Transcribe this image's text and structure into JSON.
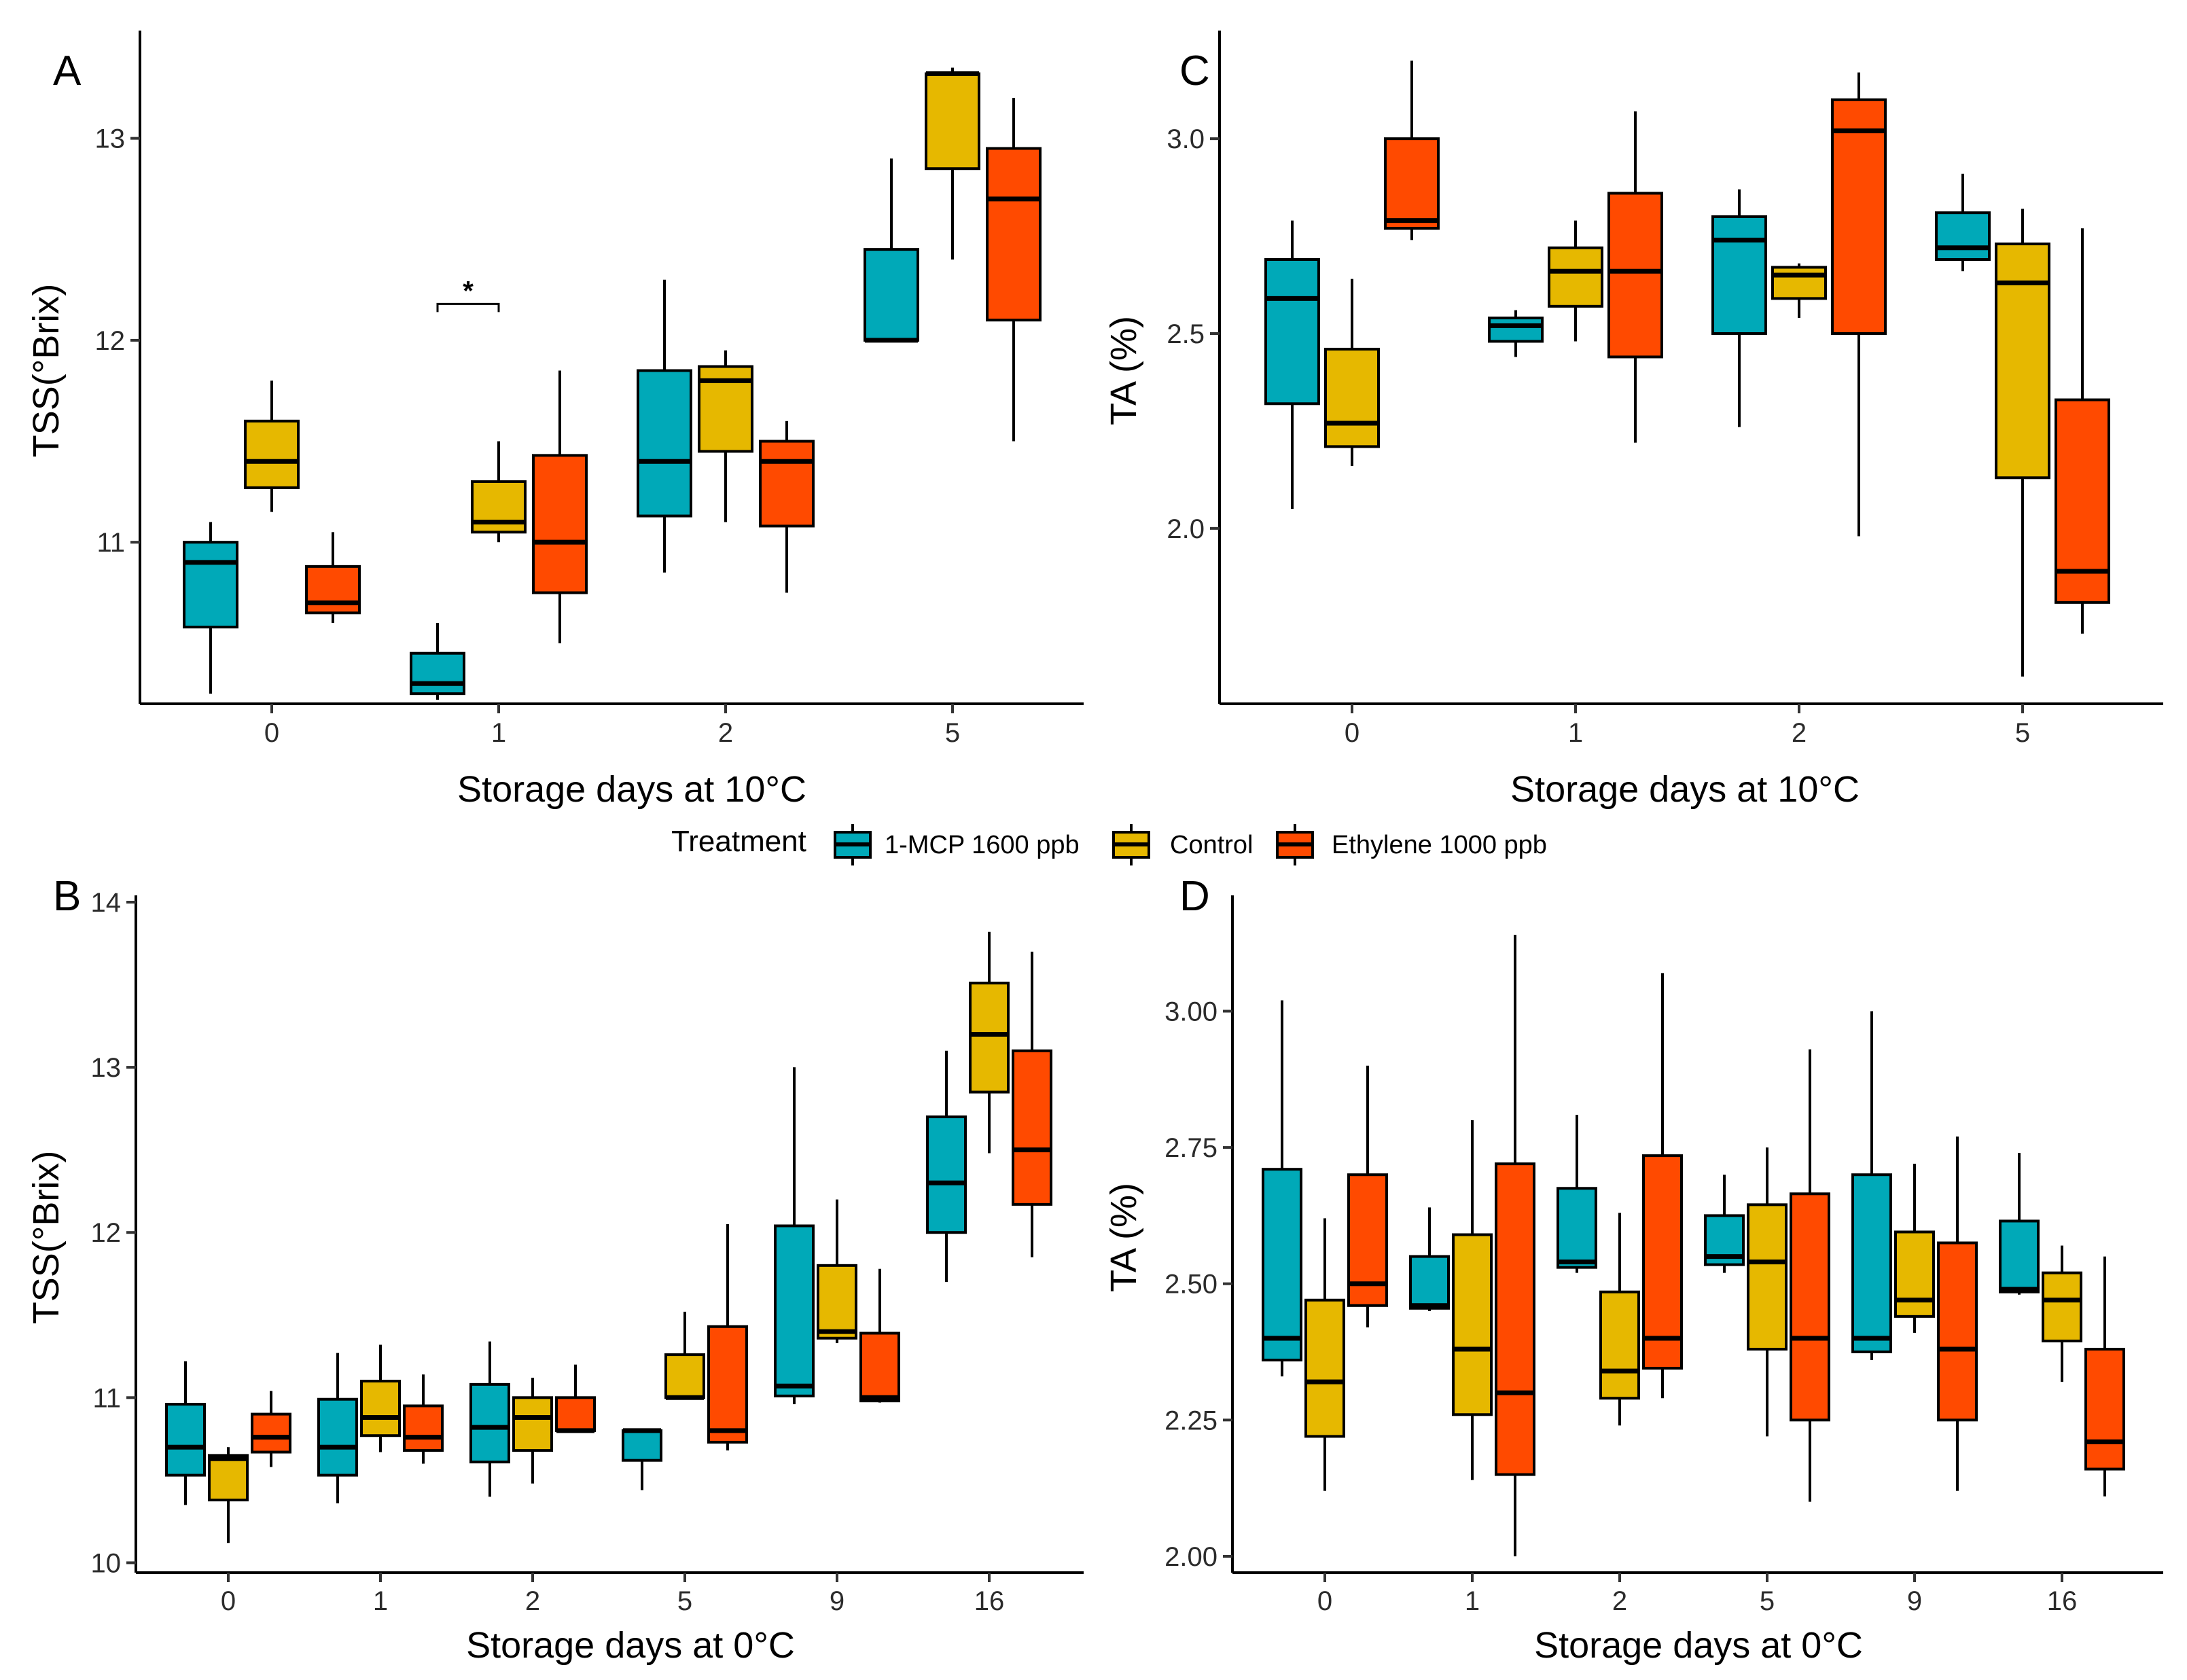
{
  "colors": {
    "1-MCP 1600 ppb": "#00A9B8",
    "Control": "#E6B800",
    "Ethylene 1000 ppb": "#FF4A00"
  },
  "legend": {
    "title": "Treatment",
    "items": [
      "1-MCP 1600 ppb",
      "Control",
      "Ethylene 1000 ppb"
    ]
  },
  "chart_data": [
    {
      "panel": "A",
      "type": "boxplot",
      "xlabel": "Storage days at 10°C",
      "ylabel": "TSS(°Brix)",
      "ylim": [
        10.2,
        13.5
      ],
      "yticks": [
        11,
        12,
        13
      ],
      "ytick_labels": [
        "11",
        "12",
        "13"
      ],
      "categories": [
        "0",
        "1",
        "2",
        "5"
      ],
      "series": [
        {
          "name": "1-MCP 1600 ppb",
          "boxes": [
            {
              "min": 10.25,
              "q1": 10.58,
              "median": 10.9,
              "q3": 11.0,
              "max": 11.1
            },
            {
              "min": 10.22,
              "q1": 10.25,
              "median": 10.3,
              "q3": 10.45,
              "max": 10.6
            },
            {
              "min": 10.85,
              "q1": 11.13,
              "median": 11.4,
              "q3": 11.85,
              "max": 12.3
            },
            {
              "min": 12.0,
              "q1": 12.0,
              "median": 12.0,
              "q3": 12.45,
              "max": 12.9
            }
          ]
        },
        {
          "name": "Control",
          "boxes": [
            {
              "min": 11.15,
              "q1": 11.27,
              "median": 11.4,
              "q3": 11.6,
              "max": 11.8
            },
            {
              "min": 11.0,
              "q1": 11.05,
              "median": 11.1,
              "q3": 11.3,
              "max": 11.5
            },
            {
              "min": 11.1,
              "q1": 11.45,
              "median": 11.8,
              "q3": 11.87,
              "max": 11.95
            },
            {
              "min": 12.4,
              "q1": 12.85,
              "median": 13.32,
              "q3": 13.32,
              "max": 13.35
            }
          ]
        },
        {
          "name": "Ethylene 1000 ppb",
          "boxes": [
            {
              "min": 10.6,
              "q1": 10.65,
              "median": 10.7,
              "q3": 10.88,
              "max": 11.05
            },
            {
              "min": 10.5,
              "q1": 10.75,
              "median": 11.0,
              "q3": 11.43,
              "max": 11.85
            },
            {
              "min": 10.75,
              "q1": 11.08,
              "median": 11.4,
              "q3": 11.5,
              "max": 11.6
            },
            {
              "min": 11.5,
              "q1": 12.1,
              "median": 12.7,
              "q3": 12.95,
              "max": 13.2
            }
          ]
        }
      ],
      "annotations": [
        {
          "text": "*",
          "category": "1",
          "between": [
            "1-MCP 1600 ppb",
            "Control"
          ],
          "y": 12.18
        }
      ]
    },
    {
      "panel": "C",
      "type": "boxplot",
      "xlabel": "Storage days at 10°C",
      "ylabel": "TA (%)",
      "ylim": [
        1.55,
        3.26
      ],
      "yticks": [
        2.0,
        2.5,
        3.0
      ],
      "ytick_labels": [
        "2.0",
        "2.5",
        "3.0"
      ],
      "categories": [
        "0",
        "1",
        "2",
        "5"
      ],
      "series": [
        {
          "name": "1-MCP 1600 ppb",
          "boxes": [
            {
              "min": 2.05,
              "q1": 2.32,
              "median": 2.59,
              "q3": 2.69,
              "max": 2.79
            },
            {
              "min": 2.44,
              "q1": 2.48,
              "median": 2.52,
              "q3": 2.54,
              "max": 2.56
            },
            {
              "min": 2.26,
              "q1": 2.5,
              "median": 2.74,
              "q3": 2.8,
              "max": 2.87
            },
            {
              "min": 2.66,
              "q1": 2.69,
              "median": 2.72,
              "q3": 2.81,
              "max": 2.91
            }
          ]
        },
        {
          "name": "Control",
          "boxes": [
            {
              "min": 2.16,
              "q1": 2.21,
              "median": 2.27,
              "q3": 2.46,
              "max": 2.64
            },
            {
              "min": 2.48,
              "q1": 2.57,
              "median": 2.66,
              "q3": 2.72,
              "max": 2.79
            },
            {
              "min": 2.54,
              "q1": 2.59,
              "median": 2.65,
              "q3": 2.67,
              "max": 2.68
            },
            {
              "min": 1.62,
              "q1": 2.13,
              "median": 2.63,
              "q3": 2.73,
              "max": 2.82
            }
          ]
        },
        {
          "name": "Ethylene 1000 ppb",
          "boxes": [
            {
              "min": 2.74,
              "q1": 2.77,
              "median": 2.79,
              "q3": 3.0,
              "max": 3.2
            },
            {
              "min": 2.22,
              "q1": 2.44,
              "median": 2.66,
              "q3": 2.86,
              "max": 3.07
            },
            {
              "min": 1.98,
              "q1": 2.5,
              "median": 3.02,
              "q3": 3.1,
              "max": 3.17
            },
            {
              "min": 1.73,
              "q1": 1.81,
              "median": 1.89,
              "q3": 2.33,
              "max": 2.77
            }
          ]
        }
      ]
    },
    {
      "panel": "B",
      "type": "boxplot",
      "xlabel": "Storage days at 0°C",
      "ylabel": "TSS(°Brix)",
      "ylim": [
        9.94,
        14.0
      ],
      "yticks": [
        10,
        11,
        12,
        13,
        14
      ],
      "ytick_labels": [
        "10",
        "11",
        "12",
        "13",
        "14"
      ],
      "categories": [
        "0",
        "1",
        "2",
        "5",
        "9",
        "16"
      ],
      "series": [
        {
          "name": "1-MCP 1600 ppb",
          "boxes": [
            {
              "min": 10.35,
              "q1": 10.53,
              "median": 10.7,
              "q3": 10.96,
              "max": 11.22
            },
            {
              "min": 10.36,
              "q1": 10.53,
              "median": 10.7,
              "q3": 10.99,
              "max": 11.27
            },
            {
              "min": 10.4,
              "q1": 10.61,
              "median": 10.82,
              "q3": 11.08,
              "max": 11.34
            },
            {
              "min": 10.44,
              "q1": 10.62,
              "median": 10.8,
              "q3": 10.8,
              "max": 10.8
            },
            {
              "min": 10.96,
              "q1": 11.01,
              "median": 11.07,
              "q3": 12.04,
              "max": 13.0
            },
            {
              "min": 11.7,
              "q1": 12.0,
              "median": 12.3,
              "q3": 12.7,
              "max": 13.1
            }
          ]
        },
        {
          "name": "Control",
          "boxes": [
            {
              "min": 10.12,
              "q1": 10.38,
              "median": 10.63,
              "q3": 10.65,
              "max": 10.7
            },
            {
              "min": 10.67,
              "q1": 10.77,
              "median": 10.88,
              "q3": 11.1,
              "max": 11.32
            },
            {
              "min": 10.48,
              "q1": 10.68,
              "median": 10.88,
              "q3": 11.0,
              "max": 11.12
            },
            {
              "min": 11.0,
              "q1": 11.0,
              "median": 11.0,
              "q3": 11.26,
              "max": 11.52
            },
            {
              "min": 11.33,
              "q1": 11.36,
              "median": 11.4,
              "q3": 11.8,
              "max": 12.2
            },
            {
              "min": 12.48,
              "q1": 12.85,
              "median": 13.2,
              "q3": 13.51,
              "max": 13.82
            }
          ]
        },
        {
          "name": "Ethylene 1000 ppb",
          "boxes": [
            {
              "min": 10.58,
              "q1": 10.67,
              "median": 10.76,
              "q3": 10.9,
              "max": 11.04
            },
            {
              "min": 10.6,
              "q1": 10.68,
              "median": 10.76,
              "q3": 10.95,
              "max": 11.14
            },
            {
              "min": 10.8,
              "q1": 10.8,
              "median": 10.8,
              "q3": 11.0,
              "max": 11.2
            },
            {
              "min": 10.68,
              "q1": 10.73,
              "median": 10.8,
              "q3": 11.43,
              "max": 12.05
            },
            {
              "min": 10.97,
              "q1": 10.98,
              "median": 11.0,
              "q3": 11.39,
              "max": 11.78
            },
            {
              "min": 11.85,
              "q1": 12.17,
              "median": 12.5,
              "q3": 13.1,
              "max": 13.7
            }
          ]
        }
      ]
    },
    {
      "panel": "D",
      "type": "boxplot",
      "xlabel": "Storage days at 0°C",
      "ylabel": "TA (%)",
      "ylim": [
        1.97,
        3.2
      ],
      "yticks": [
        2.0,
        2.25,
        2.5,
        2.75,
        3.0
      ],
      "ytick_labels": [
        "2.00",
        "2.25",
        "2.50",
        "2.75",
        "3.00"
      ],
      "categories": [
        "0",
        "1",
        "2",
        "5",
        "9",
        "16"
      ],
      "series": [
        {
          "name": "1-MCP 1600 ppb",
          "boxes": [
            {
              "min": 2.33,
              "q1": 2.36,
              "median": 2.4,
              "q3": 2.71,
              "max": 3.02
            },
            {
              "min": 2.45,
              "q1": 2.455,
              "median": 2.46,
              "q3": 2.55,
              "max": 2.64
            },
            {
              "min": 2.52,
              "q1": 2.53,
              "median": 2.54,
              "q3": 2.675,
              "max": 2.81
            },
            {
              "min": 2.52,
              "q1": 2.535,
              "median": 2.55,
              "q3": 2.625,
              "max": 2.7
            },
            {
              "min": 2.36,
              "q1": 2.375,
              "median": 2.4,
              "q3": 2.7,
              "max": 3.0
            },
            {
              "min": 2.48,
              "q1": 2.485,
              "median": 2.49,
              "q3": 2.615,
              "max": 2.74
            }
          ]
        },
        {
          "name": "Control",
          "boxes": [
            {
              "min": 2.12,
              "q1": 2.22,
              "median": 2.32,
              "q3": 2.47,
              "max": 2.62
            },
            {
              "min": 2.14,
              "q1": 2.26,
              "median": 2.38,
              "q3": 2.59,
              "max": 2.8
            },
            {
              "min": 2.24,
              "q1": 2.29,
              "median": 2.34,
              "q3": 2.485,
              "max": 2.63
            },
            {
              "min": 2.22,
              "q1": 2.38,
              "median": 2.54,
              "q3": 2.645,
              "max": 2.75
            },
            {
              "min": 2.41,
              "q1": 2.44,
              "median": 2.47,
              "q3": 2.595,
              "max": 2.72
            },
            {
              "min": 2.32,
              "q1": 2.395,
              "median": 2.47,
              "q3": 2.52,
              "max": 2.57
            }
          ]
        },
        {
          "name": "Ethylene 1000 ppb",
          "boxes": [
            {
              "min": 2.42,
              "q1": 2.46,
              "median": 2.5,
              "q3": 2.7,
              "max": 2.9
            },
            {
              "min": 2.0,
              "q1": 2.15,
              "median": 2.3,
              "q3": 2.72,
              "max": 3.14
            },
            {
              "min": 2.29,
              "q1": 2.345,
              "median": 2.4,
              "q3": 2.735,
              "max": 3.07
            },
            {
              "min": 2.1,
              "q1": 2.25,
              "median": 2.4,
              "q3": 2.665,
              "max": 2.93
            },
            {
              "min": 2.12,
              "q1": 2.25,
              "median": 2.38,
              "q3": 2.575,
              "max": 2.77
            },
            {
              "min": 2.11,
              "q1": 2.16,
              "median": 2.21,
              "q3": 2.38,
              "max": 2.55
            }
          ]
        }
      ]
    }
  ]
}
